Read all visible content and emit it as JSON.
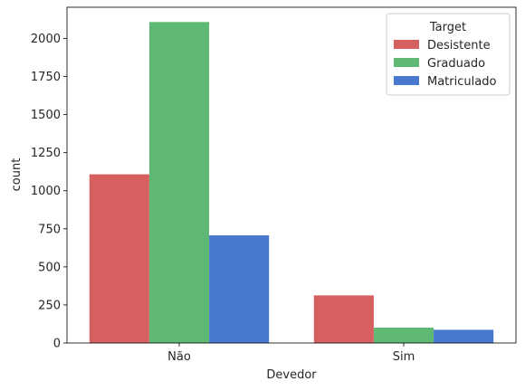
{
  "chart_data": {
    "type": "bar",
    "xlabel": "Devedor",
    "ylabel": "count",
    "categories": [
      "Não",
      "Sim"
    ],
    "ylim": [
      0,
      2205
    ],
    "yticks": [
      0,
      250,
      500,
      750,
      1000,
      1250,
      1500,
      1750,
      2000
    ],
    "legend": {
      "title": "Target",
      "placement": "top-right"
    },
    "series": [
      {
        "name": "Desistente",
        "color": "#d65f5f",
        "values": [
          1108,
          313
        ]
      },
      {
        "name": "Graduado",
        "color": "#5fb974",
        "values": [
          2108,
          101
        ]
      },
      {
        "name": "Matriculado",
        "color": "#4878d0",
        "values": [
          707,
          87
        ]
      }
    ],
    "grid": false
  }
}
